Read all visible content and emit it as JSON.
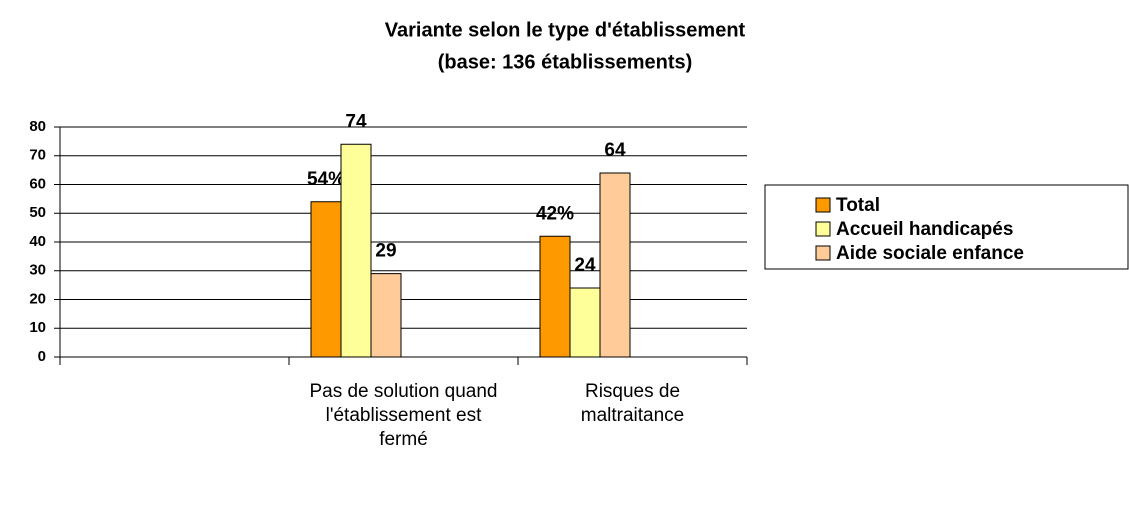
{
  "chart_data": {
    "type": "bar",
    "title": "Variante selon le type d'établissement",
    "subtitle": "(base: 136 établissements)",
    "categories": [
      null,
      "Pas de solution quand l'établissement est fermé",
      "Risques de maltraitance"
    ],
    "series": [
      {
        "name": "Total",
        "color": "#ff9900",
        "values": [
          null,
          54,
          42
        ],
        "value_labels": [
          null,
          "54%",
          "42%"
        ]
      },
      {
        "name": "Accueil handicapés",
        "color": "#ffff99",
        "values": [
          null,
          74,
          24
        ]
      },
      {
        "name": "Aide sociale enfance",
        "color": "#ffcc99",
        "values": [
          null,
          29,
          64
        ]
      }
    ],
    "ylim": [
      0,
      80
    ],
    "yticks": [
      0,
      10,
      20,
      30,
      40,
      50,
      60,
      70,
      80
    ],
    "grid": true,
    "legend": "right"
  }
}
